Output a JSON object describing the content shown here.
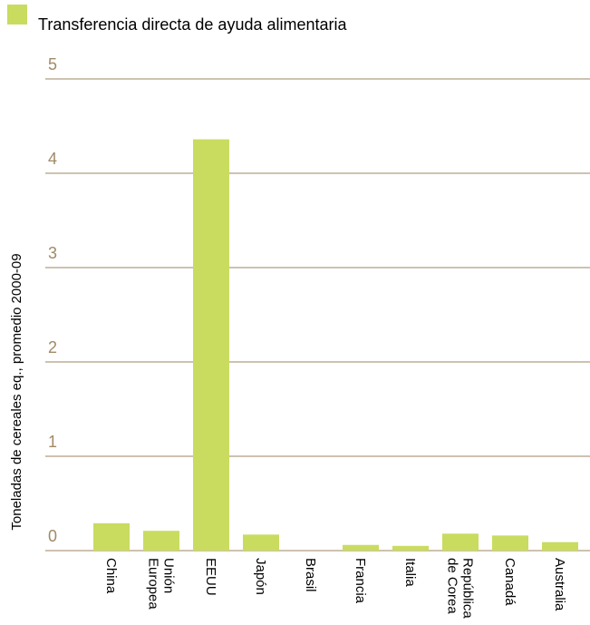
{
  "chart_data": {
    "type": "bar",
    "legend": "Transferencia directa de ayuda alimentaria",
    "y_label": "Toneladas de cereales eq., promedio 2000-09",
    "categories": [
      "China",
      "Unión Europea",
      "EEUU",
      "Japón",
      "Brasil",
      "Francia",
      "Italia",
      "República de Corea",
      "Canadá",
      "Australia"
    ],
    "values": [
      0.29,
      0.21,
      4.36,
      0.17,
      0,
      0.06,
      0.05,
      0.18,
      0.16,
      0.09
    ],
    "color": "#c9dc5f",
    "ylim": [
      0,
      5
    ],
    "yticks": [
      0,
      1,
      2,
      3,
      4,
      5
    ],
    "grid": true
  }
}
